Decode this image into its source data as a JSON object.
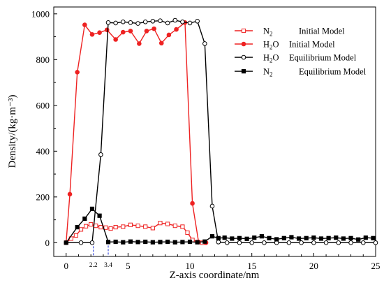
{
  "chart_data": {
    "type": "line",
    "title": "",
    "xlabel": "Z-axis coordinate/nm",
    "ylabel": "Density/(kg·m⁻³)",
    "xlim": [
      -1,
      25
    ],
    "ylim": [
      -60,
      1030
    ],
    "xticks": [
      0,
      5,
      10,
      15,
      20,
      25
    ],
    "yticks": [
      0,
      200,
      400,
      600,
      800,
      1000
    ],
    "annotations": [
      {
        "x": 2.2,
        "label": "2.2",
        "color": "#1a2fd6"
      },
      {
        "x": 3.4,
        "label": "3.4",
        "color": "#1a2fd6"
      }
    ],
    "legend_position": "top-right",
    "series": [
      {
        "name": "N₂",
        "label": "N₂     Initial Model",
        "name_main": "N",
        "name_sub": "2",
        "legend_desc": "Initial Model",
        "color": "#ee2222",
        "marker": "square-open",
        "x": [
          0,
          0.4,
          0.8,
          1.2,
          1.6,
          2.0,
          2.4,
          2.8,
          3.2,
          3.6,
          4.0,
          4.6,
          5.2,
          5.8,
          6.4,
          7.0,
          7.6,
          8.2,
          8.8,
          9.4,
          9.8,
          10.2,
          10.6,
          11.0
        ],
        "y": [
          0,
          18,
          32,
          58,
          72,
          80,
          74,
          68,
          66,
          62,
          68,
          70,
          78,
          74,
          70,
          64,
          86,
          82,
          74,
          70,
          44,
          12,
          3,
          0
        ]
      },
      {
        "name": "H₂O",
        "label": "H₂O Initial Model",
        "name_main": "H",
        "name_sub": "2",
        "name_tail": "O",
        "legend_desc": "Initial Model",
        "color": "#ee2222",
        "marker": "circle-filled",
        "x": [
          0,
          0.3,
          0.9,
          1.5,
          2.1,
          2.7,
          3.3,
          4.0,
          4.6,
          5.2,
          5.9,
          6.5,
          7.1,
          7.7,
          8.3,
          8.9,
          9.6,
          10.2,
          10.7,
          11.3
        ],
        "y": [
          0,
          212,
          745,
          952,
          910,
          918,
          930,
          888,
          920,
          925,
          870,
          925,
          935,
          872,
          908,
          932,
          962,
          172,
          3,
          0
        ]
      },
      {
        "name": "H₂O",
        "label": "H₂O Equilibrium Model",
        "name_main": "H",
        "name_sub": "2",
        "name_tail": "O",
        "legend_desc": "Equilibrium Model",
        "color": "#000000",
        "marker": "circle-open",
        "x": [
          0,
          1.2,
          2.1,
          2.8,
          3.4,
          4.0,
          4.6,
          5.2,
          5.8,
          6.4,
          7.0,
          7.6,
          8.2,
          8.8,
          9.4,
          10.0,
          10.6,
          11.2,
          11.8,
          12.3,
          13,
          14,
          15,
          16,
          17,
          18,
          19,
          20,
          21,
          22,
          23,
          24,
          25
        ],
        "y": [
          0,
          0,
          0,
          385,
          962,
          960,
          965,
          962,
          958,
          965,
          968,
          970,
          960,
          972,
          965,
          960,
          968,
          870,
          160,
          3,
          0,
          0,
          0,
          0,
          0,
          0,
          0,
          0,
          0,
          0,
          0,
          0,
          0
        ]
      },
      {
        "name": "N₂",
        "label": "N₂     Equilibrium Model",
        "name_main": "N",
        "name_sub": "2",
        "legend_desc": "Equilibrium Model",
        "color": "#000000",
        "marker": "square-filled",
        "x": [
          0,
          0.9,
          1.5,
          2.1,
          2.7,
          3.4,
          4.0,
          4.6,
          5.2,
          5.8,
          6.4,
          7.0,
          7.6,
          8.2,
          8.8,
          9.4,
          10.0,
          10.6,
          11.2,
          11.8,
          12.3,
          12.8,
          13.4,
          14.0,
          14.6,
          15.2,
          15.8,
          16.4,
          17.0,
          17.6,
          18.2,
          18.8,
          19.4,
          20.0,
          20.6,
          21.2,
          21.8,
          22.4,
          23.0,
          23.6,
          24.2,
          24.8
        ],
        "y": [
          0,
          68,
          105,
          148,
          118,
          3,
          4,
          2,
          5,
          3,
          4,
          2,
          3,
          4,
          2,
          3,
          4,
          2,
          5,
          28,
          20,
          22,
          18,
          20,
          17,
          22,
          28,
          20,
          15,
          20,
          24,
          18,
          20,
          22,
          18,
          20,
          22,
          18,
          20,
          14,
          22,
          20
        ]
      }
    ]
  }
}
